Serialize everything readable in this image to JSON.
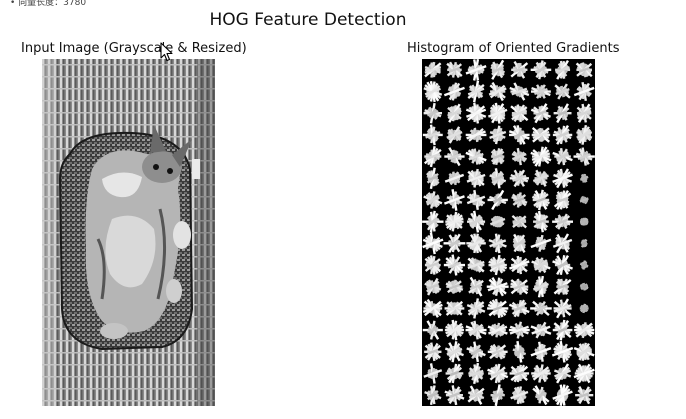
{
  "top_note": "• 向量长度：3780",
  "figure": {
    "title": "HOG Feature Detection"
  },
  "input_panel": {
    "title": "Input Image (Grayscale & Resized)",
    "image_subject": "cat-in-basket"
  },
  "hog_panel": {
    "title": "Histogram of Oriented Gradients",
    "grid": {
      "cols": 8,
      "rows": 16
    }
  },
  "cursor": {
    "icon": "mouse-pointer-icon"
  }
}
